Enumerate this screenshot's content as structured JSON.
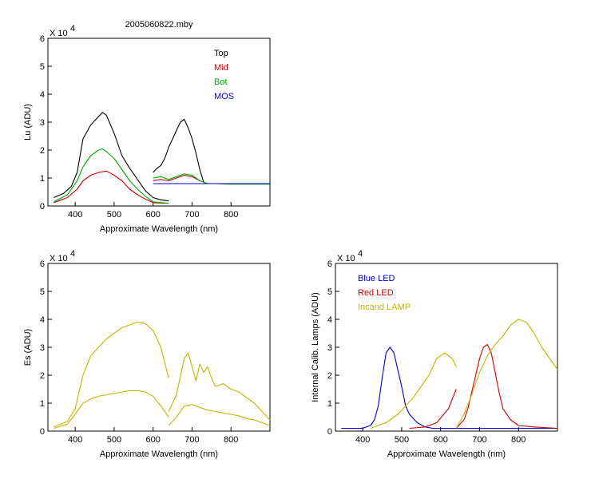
{
  "figure_title": "2005060822.mby",
  "chart_data": [
    {
      "type": "line",
      "ylabel": "Lu (ADU)",
      "xlabel": "Approximate Wavelength (nm)",
      "yscale_label": "X 10",
      "yscale_exp": "4",
      "xlim": [
        330,
        900
      ],
      "ylim": [
        0,
        6
      ],
      "xticks": [
        400,
        500,
        600,
        700,
        800
      ],
      "yticks": [
        0,
        1,
        2,
        3,
        4,
        5,
        6
      ],
      "legend_position": "top-right",
      "legend": [
        {
          "label": "Top",
          "color": "#000000"
        },
        {
          "label": "Mid",
          "color": "#cc0000"
        },
        {
          "label": "Bot",
          "color": "#00aa00"
        },
        {
          "label": "MOS",
          "color": "#0000cc"
        }
      ],
      "series": [
        {
          "name": "Top",
          "color": "#000000",
          "segments": [
            {
              "x": [
                345,
                370,
                390,
                405,
                420,
                440,
                460,
                470,
                480,
                500,
                520,
                540,
                560,
                580,
                600,
                620,
                640
              ],
              "y": [
                0.3,
                0.45,
                0.7,
                1.2,
                2.4,
                2.9,
                3.2,
                3.35,
                3.25,
                2.6,
                1.8,
                1.35,
                0.95,
                0.55,
                0.3,
                0.22,
                0.18
              ]
            },
            {
              "x": [
                600,
                610,
                620,
                630,
                640,
                650,
                660,
                670,
                680,
                690,
                700,
                710,
                720,
                730,
                740,
                760,
                800,
                850,
                900
              ],
              "y": [
                1.2,
                1.35,
                1.45,
                1.7,
                2.1,
                2.4,
                2.7,
                3.0,
                3.1,
                2.8,
                2.4,
                1.9,
                1.3,
                0.85,
                0.8,
                0.8,
                0.8,
                0.8,
                0.8
              ]
            }
          ]
        },
        {
          "name": "Mid",
          "color": "#cc0000",
          "segments": [
            {
              "x": [
                345,
                380,
                405,
                420,
                440,
                460,
                480,
                500,
                520,
                540,
                560,
                580,
                600,
                620,
                640
              ],
              "y": [
                0.12,
                0.3,
                0.6,
                0.9,
                1.1,
                1.2,
                1.25,
                1.1,
                0.9,
                0.6,
                0.4,
                0.25,
                0.12,
                0.1,
                0.1
              ]
            },
            {
              "x": [
                600,
                620,
                640,
                660,
                680,
                700,
                720,
                740,
                760,
                800,
                850,
                900
              ],
              "y": [
                0.9,
                0.95,
                0.9,
                1.0,
                1.1,
                1.05,
                0.9,
                0.8,
                0.8,
                0.8,
                0.8,
                0.8
              ]
            }
          ]
        },
        {
          "name": "Bot",
          "color": "#00aa00",
          "segments": [
            {
              "x": [
                345,
                380,
                405,
                420,
                440,
                460,
                470,
                480,
                500,
                520,
                540,
                560,
                580,
                600,
                620,
                640
              ],
              "y": [
                0.15,
                0.4,
                0.9,
                1.4,
                1.8,
                2.0,
                2.05,
                1.95,
                1.7,
                1.3,
                0.9,
                0.6,
                0.35,
                0.15,
                0.12,
                0.1
              ]
            },
            {
              "x": [
                600,
                620,
                640,
                660,
                680,
                700,
                720,
                740,
                760,
                800,
                850,
                900
              ],
              "y": [
                1.0,
                1.05,
                0.95,
                1.05,
                1.15,
                1.1,
                0.9,
                0.8,
                0.8,
                0.78,
                0.78,
                0.78
              ]
            }
          ]
        },
        {
          "name": "MOS",
          "color": "#0000cc",
          "segments": [
            {
              "x": [
                600,
                650,
                700,
                750,
                800,
                850,
                900
              ],
              "y": [
                0.8,
                0.8,
                0.8,
                0.8,
                0.8,
                0.8,
                0.8
              ]
            }
          ]
        }
      ]
    },
    {
      "type": "line",
      "ylabel": "Es  (ADU)",
      "xlabel": "Approximate Wavelength (nm)",
      "yscale_label": "X 10",
      "yscale_exp": "4",
      "xlim": [
        330,
        900
      ],
      "ylim": [
        0,
        6
      ],
      "xticks": [
        400,
        500,
        600,
        700,
        800
      ],
      "yticks": [
        0,
        1,
        2,
        3,
        4,
        5,
        6
      ],
      "legend": [],
      "series": [
        {
          "color": "#c8b400",
          "segments": [
            {
              "x": [
                345,
                380,
                400,
                420,
                440,
                460,
                480,
                500,
                520,
                540,
                560,
                580,
                600,
                620,
                640
              ],
              "y": [
                0.15,
                0.35,
                0.8,
                2.0,
                2.7,
                3.0,
                3.3,
                3.5,
                3.7,
                3.8,
                3.9,
                3.85,
                3.6,
                3.0,
                1.9
              ]
            },
            {
              "x": [
                640,
                660,
                680,
                690,
                700,
                710,
                720,
                730,
                740,
                750,
                760,
                780,
                800,
                820,
                840,
                860,
                880,
                900
              ],
              "y": [
                0.7,
                1.3,
                2.6,
                2.8,
                2.3,
                1.8,
                2.4,
                2.1,
                2.3,
                1.9,
                1.6,
                1.7,
                1.5,
                1.4,
                1.2,
                1.0,
                0.7,
                0.4
              ]
            }
          ]
        },
        {
          "color": "#c8b400",
          "segments": [
            {
              "x": [
                345,
                380,
                400,
                420,
                440,
                460,
                480,
                500,
                520,
                540,
                560,
                580,
                600,
                620,
                640
              ],
              "y": [
                0.1,
                0.25,
                0.6,
                1.0,
                1.15,
                1.25,
                1.3,
                1.35,
                1.4,
                1.45,
                1.45,
                1.4,
                1.25,
                0.9,
                0.5
              ]
            },
            {
              "x": [
                640,
                660,
                680,
                700,
                720,
                740,
                760,
                780,
                800,
                820,
                840,
                860,
                880,
                900
              ],
              "y": [
                0.2,
                0.5,
                0.9,
                0.95,
                0.85,
                0.75,
                0.7,
                0.65,
                0.6,
                0.55,
                0.45,
                0.4,
                0.3,
                0.2
              ]
            }
          ]
        }
      ]
    },
    {
      "type": "line",
      "ylabel": "Internal Calib. Lamps (ADU)",
      "xlabel": "Approximate Wavelength (nm)",
      "yscale_label": "X 10",
      "yscale_exp": "4",
      "xlim": [
        330,
        900
      ],
      "ylim": [
        0,
        6
      ],
      "xticks": [
        400,
        500,
        600,
        700,
        800
      ],
      "yticks": [
        0,
        1,
        2,
        3,
        4,
        5,
        6
      ],
      "legend_position": "top-left",
      "legend": [
        {
          "label": "Blue LED",
          "color": "#0000cc"
        },
        {
          "label": "Red LED",
          "color": "#cc0000"
        },
        {
          "label": "Incand LAMP",
          "color": "#c8b400"
        }
      ],
      "series": [
        {
          "name": "Blue LED",
          "color": "#0000cc",
          "segments": [
            {
              "x": [
                345,
                400,
                420,
                430,
                440,
                450,
                460,
                470,
                480,
                490,
                500,
                510,
                520,
                530,
                540,
                560,
                580,
                600,
                700,
                800,
                900
              ],
              "y": [
                0.1,
                0.1,
                0.2,
                0.4,
                0.9,
                1.9,
                2.8,
                3.0,
                2.8,
                2.2,
                1.6,
                0.9,
                0.6,
                0.45,
                0.3,
                0.15,
                0.1,
                0.1,
                0.1,
                0.1,
                0.1
              ]
            }
          ]
        },
        {
          "name": "Red LED",
          "color": "#cc0000",
          "segments": [
            {
              "x": [
                520,
                560,
                590,
                620,
                640
              ],
              "y": [
                0.1,
                0.15,
                0.3,
                0.8,
                1.5
              ]
            },
            {
              "x": [
                640,
                660,
                670,
                680,
                690,
                700,
                710,
                720,
                730,
                740,
                750,
                760,
                780,
                800,
                840,
                900
              ],
              "y": [
                0.1,
                0.4,
                0.8,
                1.4,
                2.0,
                2.6,
                3.0,
                3.1,
                2.8,
                2.1,
                1.4,
                0.8,
                0.4,
                0.2,
                0.15,
                0.1
              ]
            }
          ]
        },
        {
          "name": "Incand LAMP",
          "color": "#c8b400",
          "segments": [
            {
              "x": [
                420,
                460,
                490,
                510,
                530,
                550,
                570,
                590,
                610,
                630,
                640
              ],
              "y": [
                0.1,
                0.3,
                0.6,
                0.9,
                1.2,
                1.6,
                2.0,
                2.6,
                2.8,
                2.6,
                2.3
              ]
            },
            {
              "x": [
                640,
                660,
                680,
                700,
                720,
                740,
                760,
                780,
                800,
                820,
                840,
                860,
                880,
                900
              ],
              "y": [
                0.1,
                0.6,
                1.3,
                2.1,
                2.7,
                3.1,
                3.4,
                3.8,
                4.0,
                3.9,
                3.5,
                3.0,
                2.6,
                2.2
              ]
            }
          ]
        }
      ]
    }
  ]
}
